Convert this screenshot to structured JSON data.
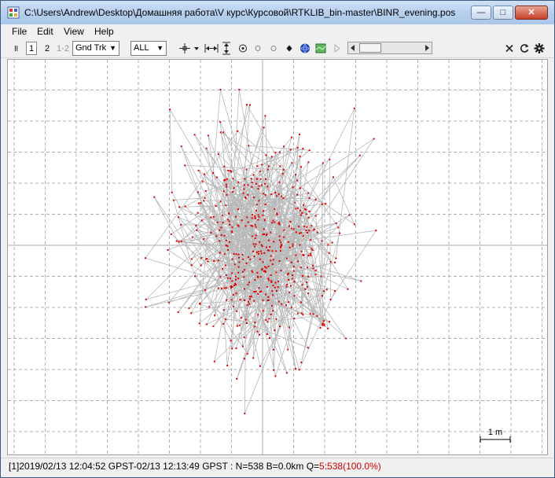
{
  "window": {
    "title": "C:\\Users\\Andrew\\Desktop\\Домашняя работа\\V курс\\Курсовой\\RTKLIB_bin-master\\BINR_evening.pos",
    "minimize": "—",
    "maximize": "□",
    "close": "✕"
  },
  "menu": {
    "file": "File",
    "edit": "Edit",
    "view": "View",
    "help": "Help"
  },
  "toolbar": {
    "btn_pause": "॥",
    "btn_1": "1",
    "btn_2": "2",
    "btn_12": "1-2",
    "plot_type": "Gnd Trk",
    "satellite_filter": "ALL",
    "icons": [
      "center-crosshair-icon",
      "fit-horizontal-icon",
      "fit-vertical-icon",
      "origin-icon",
      "show-tracks-icon",
      "show-points-icon",
      "point-icon",
      "globe-icon",
      "map-icon",
      "play-icon",
      "reset-icon",
      "reload-icon",
      "settings-icon"
    ]
  },
  "plot": {
    "scale_label": "1 m",
    "track_color": "#b8b8b8",
    "point_color": "#e00000",
    "grid_color": "#b0b0b0"
  },
  "status": {
    "main": "[1]2019/02/13 12:04:52 GPST-02/13 12:13:49 GPST : N=538 B=0.0km Q=",
    "quality": "5:538(100.0%)"
  }
}
